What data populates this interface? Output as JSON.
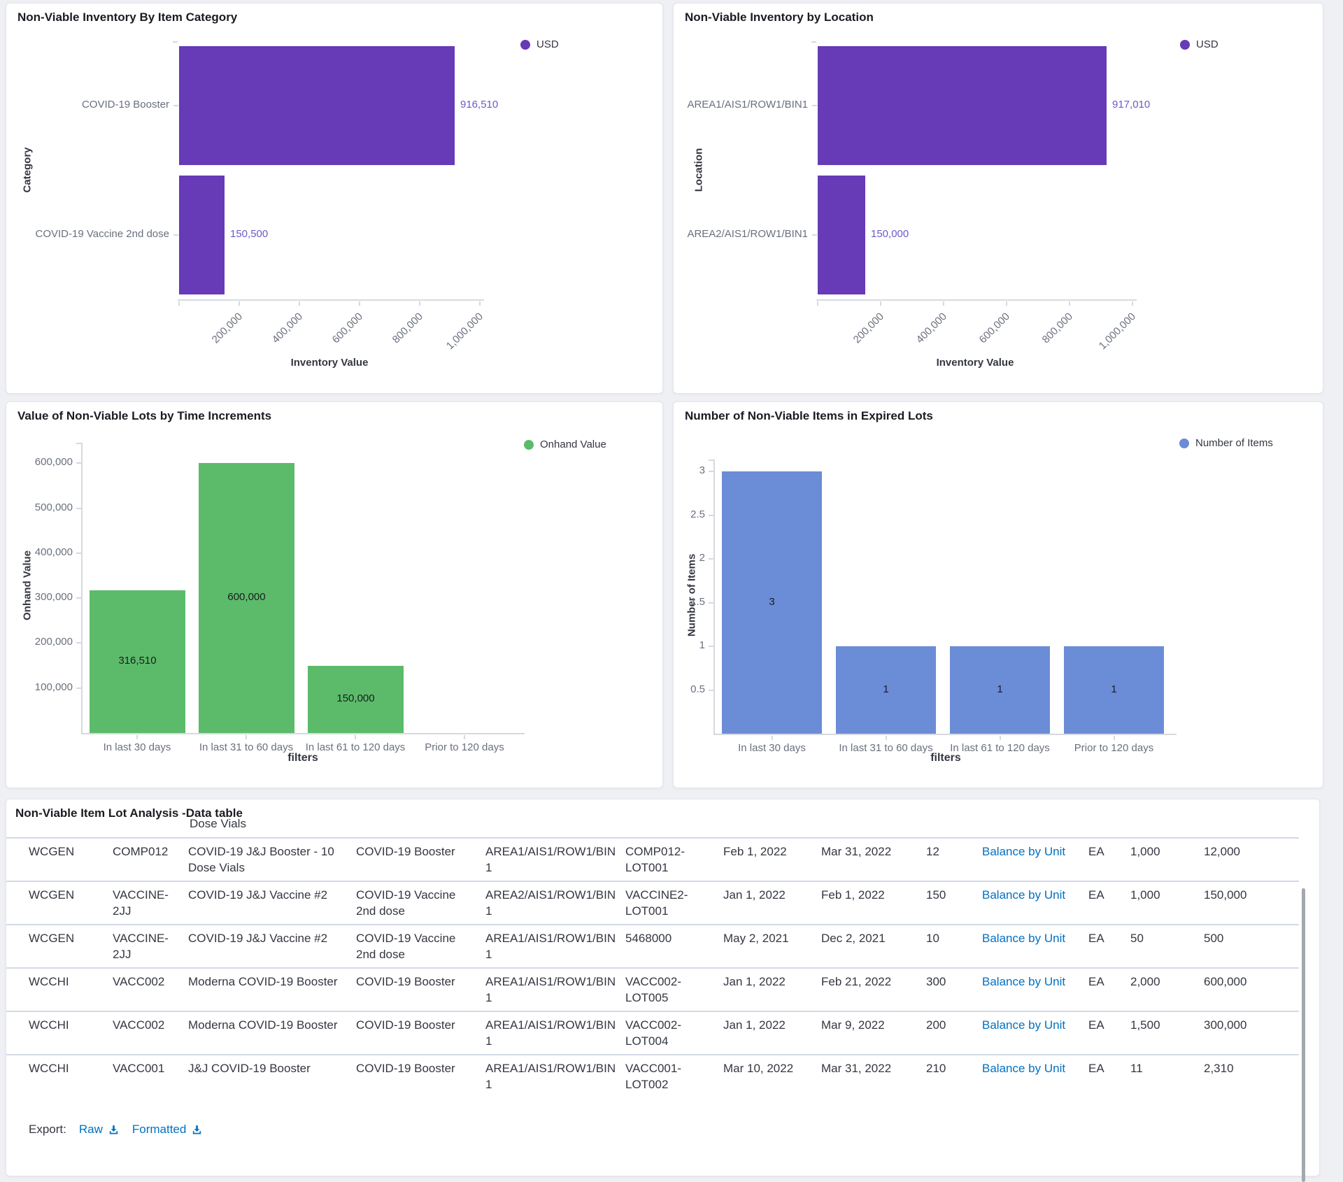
{
  "charts": {
    "category": {
      "title": "Non-Viable Inventory By Item Category",
      "legend_label": "USD",
      "bar_color": "#673ab7",
      "value_label_color": "#6a5bc9",
      "y_axis_title": "Category",
      "x_axis_title": "Inventory Value",
      "x_tick_labels": [
        "200,000",
        "400,000",
        "600,000",
        "800,000",
        "1,000,000"
      ],
      "x_tick_step": 200000,
      "bars": [
        {
          "category": "COVID-19 Booster",
          "value": 916510,
          "value_label": "916,510"
        },
        {
          "category": "COVID-19 Vaccine 2nd dose",
          "value": 150500,
          "value_label": "150,500"
        }
      ]
    },
    "location": {
      "title": "Non-Viable Inventory by Location",
      "legend_label": "USD",
      "bar_color": "#673ab7",
      "value_label_color": "#6a5bc9",
      "y_axis_title": "Location",
      "x_axis_title": "Inventory Value",
      "x_tick_labels": [
        "200,000",
        "400,000",
        "600,000",
        "800,000",
        "1,000,000"
      ],
      "x_tick_step": 200000,
      "bars": [
        {
          "category": "AREA1/AIS1/ROW1/BIN1",
          "value": 917010,
          "value_label": "917,010"
        },
        {
          "category": "AREA2/AIS1/ROW1/BIN1",
          "value": 150000,
          "value_label": "150,000"
        }
      ]
    },
    "time": {
      "title": "Value of Non-Viable Lots by Time Increments",
      "legend_label": "Onhand Value",
      "bar_color": "#5cbb6a",
      "y_axis_title": "Onhand Value",
      "x_axis_title": "filters",
      "y_tick_labels": [
        "100,000",
        "200,000",
        "300,000",
        "400,000",
        "500,000",
        "600,000"
      ],
      "y_tick_step": 100000,
      "categories": [
        "In last 30 days",
        "In last 31 to 60 days",
        "In last 61 to 120 days",
        "Prior to 120 days"
      ],
      "bars": [
        {
          "value": 316510,
          "value_label": "316,510"
        },
        {
          "value": 600000,
          "value_label": "600,000"
        },
        {
          "value": 150000,
          "value_label": "150,000"
        },
        {
          "value": 0,
          "value_label": ""
        }
      ]
    },
    "items": {
      "title": "Number of Non-Viable Items in Expired Lots",
      "legend_label": "Number of Items",
      "bar_color": "#6b8cd6",
      "y_axis_title": "Number of Items",
      "x_axis_title": "filters",
      "y_tick_labels": [
        "0.5",
        "1",
        "1.5",
        "2",
        "2.5",
        "3"
      ],
      "y_tick_step": 0.5,
      "categories": [
        "In last 30 days",
        "In last 31 to 60 days",
        "In last 61 to 120 days",
        "Prior to 120 days"
      ],
      "bars": [
        {
          "value": 3,
          "value_label": "3"
        },
        {
          "value": 1,
          "value_label": "1"
        },
        {
          "value": 1,
          "value_label": "1"
        },
        {
          "value": 1,
          "value_label": "1"
        }
      ]
    }
  },
  "table": {
    "title": "Non-Viable Item Lot Analysis -Data table",
    "clipped_row_text": "Dose Vials",
    "rows": [
      {
        "org": "WCGEN",
        "item": "COMP012",
        "description": "COVID-19 J&J Booster - 10 Dose Vials",
        "category": "COVID-19 Booster",
        "location": "AREA1/AIS1/ROW1/BIN1",
        "lot": "COMP012-LOT001",
        "start_date": "Feb 1, 2022",
        "end_date": "Mar 31, 2022",
        "qty": "12",
        "link": "Balance by Unit",
        "uom": "EA",
        "unit_qty": "1,000",
        "value": "12,000"
      },
      {
        "org": "WCGEN",
        "item": "VACCINE-2JJ",
        "description": "COVID-19 J&J Vaccine #2",
        "category": "COVID-19 Vaccine 2nd dose",
        "location": "AREA2/AIS1/ROW1/BIN1",
        "lot": "VACCINE2-LOT001",
        "start_date": "Jan 1, 2022",
        "end_date": "Feb 1, 2022",
        "qty": "150",
        "link": "Balance by Unit",
        "uom": "EA",
        "unit_qty": "1,000",
        "value": "150,000"
      },
      {
        "org": "WCGEN",
        "item": "VACCINE-2JJ",
        "description": "COVID-19 J&J Vaccine #2",
        "category": "COVID-19 Vaccine 2nd dose",
        "location": "AREA1/AIS1/ROW1/BIN1",
        "lot": "5468000",
        "start_date": "May 2, 2021",
        "end_date": "Dec 2, 2021",
        "qty": "10",
        "link": "Balance by Unit",
        "uom": "EA",
        "unit_qty": "50",
        "value": "500"
      },
      {
        "org": "WCCHI",
        "item": "VACC002",
        "description": "Moderna COVID-19 Booster",
        "category": "COVID-19 Booster",
        "location": "AREA1/AIS1/ROW1/BIN1",
        "lot": "VACC002-LOT005",
        "start_date": "Jan 1, 2022",
        "end_date": "Feb 21, 2022",
        "qty": "300",
        "link": "Balance by Unit",
        "uom": "EA",
        "unit_qty": "2,000",
        "value": "600,000"
      },
      {
        "org": "WCCHI",
        "item": "VACC002",
        "description": "Moderna COVID-19 Booster",
        "category": "COVID-19 Booster",
        "location": "AREA1/AIS1/ROW1/BIN1",
        "lot": "VACC002-LOT004",
        "start_date": "Jan 1, 2022",
        "end_date": "Mar 9, 2022",
        "qty": "200",
        "link": "Balance by Unit",
        "uom": "EA",
        "unit_qty": "1,500",
        "value": "300,000"
      },
      {
        "org": "WCCHI",
        "item": "VACC001",
        "description": "J&J COVID-19 Booster",
        "category": "COVID-19 Booster",
        "location": "AREA1/AIS1/ROW1/BIN1",
        "lot": "VACC001-LOT002",
        "start_date": "Mar 10, 2022",
        "end_date": "Mar 31, 2022",
        "qty": "210",
        "link": "Balance by Unit",
        "uom": "EA",
        "unit_qty": "11",
        "value": "2,310"
      }
    ],
    "export": {
      "label": "Export:",
      "raw_label": "Raw",
      "formatted_label": "Formatted"
    },
    "link_color": "#0071c2"
  },
  "chart_data": [
    {
      "type": "bar",
      "orientation": "horizontal",
      "title": "Non-Viable Inventory By Item Category",
      "categories": [
        "COVID-19 Booster",
        "COVID-19 Vaccine 2nd dose"
      ],
      "values": [
        916510,
        150500
      ],
      "series_name": "USD",
      "xlabel": "Inventory Value",
      "ylabel": "Category",
      "xlim": [
        0,
        1000000
      ],
      "grid": false,
      "legend_position": "right"
    },
    {
      "type": "bar",
      "orientation": "horizontal",
      "title": "Non-Viable Inventory by Location",
      "categories": [
        "AREA1/AIS1/ROW1/BIN1",
        "AREA2/AIS1/ROW1/BIN1"
      ],
      "values": [
        917010,
        150000
      ],
      "series_name": "USD",
      "xlabel": "Inventory Value",
      "ylabel": "Location",
      "xlim": [
        0,
        1000000
      ],
      "grid": false,
      "legend_position": "right"
    },
    {
      "type": "bar",
      "orientation": "vertical",
      "title": "Value of Non-Viable Lots by Time Increments",
      "categories": [
        "In last 30 days",
        "In last 31 to 60 days",
        "In last 61 to 120 days",
        "Prior to 120 days"
      ],
      "values": [
        316510,
        600000,
        150000,
        0
      ],
      "series_name": "Onhand Value",
      "xlabel": "filters",
      "ylabel": "Onhand Value",
      "ylim": [
        0,
        650000
      ],
      "grid": false,
      "legend_position": "right"
    },
    {
      "type": "bar",
      "orientation": "vertical",
      "title": "Number of Non-Viable Items in Expired Lots",
      "categories": [
        "In last 30 days",
        "In last 31 to 60 days",
        "In last 61 to 120 days",
        "Prior to 120 days"
      ],
      "values": [
        3,
        1,
        1,
        1
      ],
      "series_name": "Number of Items",
      "xlabel": "filters",
      "ylabel": "Number of Items",
      "ylim": [
        0,
        3.25
      ],
      "grid": false,
      "legend_position": "right"
    }
  ]
}
